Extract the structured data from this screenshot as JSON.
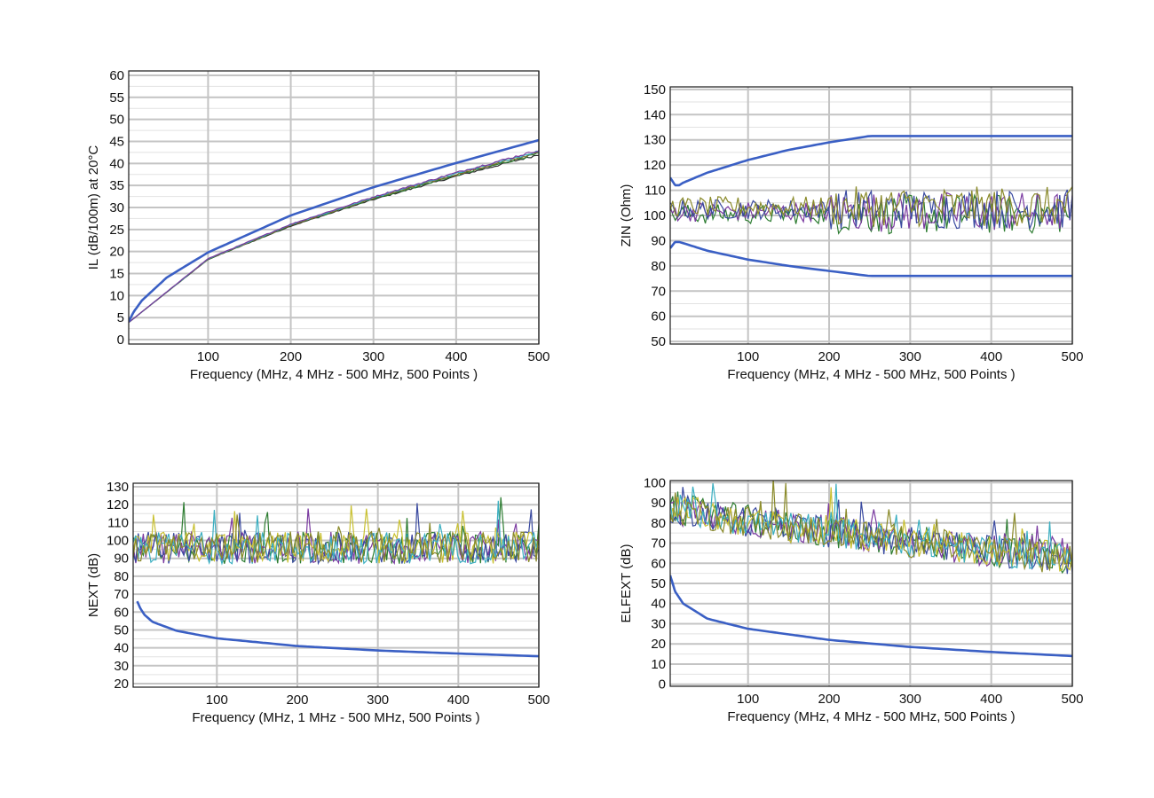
{
  "chart_data": [
    {
      "type": "line",
      "xlabel": "Frequency (MHz, 4 MHz - 500 MHz, 500 Points )",
      "ylabel": "IL (dB/100m) at 20°C",
      "xlim": [
        4,
        500
      ],
      "ylim": [
        -1,
        61
      ],
      "xticks": [
        100,
        200,
        300,
        400,
        500
      ],
      "yticks": [
        0,
        5,
        10,
        15,
        20,
        25,
        30,
        35,
        40,
        45,
        50,
        55,
        60
      ],
      "grid": true,
      "limit_lines": [
        {
          "x": [
            4,
            10,
            20,
            50,
            100,
            200,
            300,
            400,
            500
          ],
          "values": [
            4.1,
            6.3,
            8.9,
            14.1,
            19.8,
            28.2,
            34.6,
            40.1,
            45.3
          ]
        }
      ],
      "series_colors": [
        "#2a2a2a",
        "#2e7d32",
        "#7a6a2a",
        "#3aaec0",
        "#7a3aa0"
      ],
      "measured_summary": {
        "x": [
          4,
          100,
          200,
          300,
          400,
          500
        ],
        "values": [
          3.9,
          18.3,
          26.0,
          32.1,
          37.5,
          42.5
        ]
      }
    },
    {
      "type": "line",
      "xlabel": "Frequency (MHz, 4 MHz - 500 MHz, 500 Points )",
      "ylabel": "ZIN (Ohm)",
      "xlim": [
        4,
        500
      ],
      "ylim": [
        49,
        151
      ],
      "xticks": [
        100,
        200,
        300,
        400,
        500
      ],
      "yticks": [
        50,
        60,
        70,
        80,
        90,
        100,
        110,
        120,
        130,
        140,
        150
      ],
      "grid": true,
      "limit_lines": [
        {
          "x": [
            4,
            10,
            15,
            20,
            50,
            100,
            150,
            200,
            250,
            500
          ],
          "values": [
            115,
            112,
            112,
            113,
            117,
            122,
            126,
            129,
            131.5,
            131.5
          ]
        },
        {
          "x": [
            4,
            10,
            15,
            20,
            50,
            100,
            150,
            200,
            250,
            500
          ],
          "values": [
            87,
            89.5,
            89.5,
            89,
            86,
            82.5,
            80,
            78,
            76,
            76
          ]
        }
      ],
      "series_colors": [
        "#2e7d32",
        "#7a3aa0",
        "#3a4aa0",
        "#8a8a2a"
      ],
      "measured_summary": {
        "band_low": 90,
        "band_high": 112,
        "center": 102
      }
    },
    {
      "type": "line",
      "xlabel": "Frequency (MHz, 1 MHz - 500 MHz, 500 Points )",
      "ylabel": "NEXT (dB)",
      "xlim": [
        -4,
        500
      ],
      "ylim": [
        18,
        132
      ],
      "xticks": [
        100,
        200,
        300,
        400,
        500
      ],
      "yticks": [
        20,
        30,
        40,
        50,
        60,
        70,
        80,
        90,
        100,
        110,
        120,
        130
      ],
      "grid": true,
      "limit_lines": [
        {
          "x": [
            1,
            5,
            10,
            20,
            50,
            100,
            200,
            300,
            400,
            500
          ],
          "values": [
            66,
            62,
            58.5,
            54.5,
            49.5,
            45.3,
            41,
            38.5,
            36.8,
            35.3
          ]
        }
      ],
      "series_colors": [
        "#2e7d32",
        "#7a3aa0",
        "#3a4aa0",
        "#c8c030",
        "#3aaec0",
        "#8a8a2a"
      ],
      "measured_summary": {
        "band_low": 83,
        "band_high": 130,
        "center": 96
      }
    },
    {
      "type": "line",
      "xlabel": "Frequency (MHz, 4 MHz - 500 MHz, 500 Points )",
      "ylabel": "ELFEXT (dB)",
      "xlim": [
        4,
        500
      ],
      "ylim": [
        -1,
        101
      ],
      "xticks": [
        100,
        200,
        300,
        400,
        500
      ],
      "yticks": [
        0,
        10,
        20,
        30,
        40,
        50,
        60,
        70,
        80,
        90,
        100
      ],
      "grid": true,
      "limit_lines": [
        {
          "x": [
            4,
            10,
            20,
            50,
            100,
            200,
            300,
            400,
            500
          ],
          "values": [
            54,
            46,
            40,
            32.5,
            27.5,
            22,
            18.5,
            16,
            14
          ]
        }
      ],
      "series_colors": [
        "#2e7d32",
        "#7a3aa0",
        "#3a4aa0",
        "#c8c030",
        "#3aaec0",
        "#8a8a2a"
      ],
      "measured_summary": {
        "start_center": 88,
        "end_center": 62,
        "band_low": 48,
        "band_high": 101
      }
    }
  ],
  "colors": {
    "limit_line": "#3a5fc4",
    "grid_major": "#c4c4c4",
    "grid_minor": "#e2e2e2",
    "frame": "#1a1a1a"
  }
}
